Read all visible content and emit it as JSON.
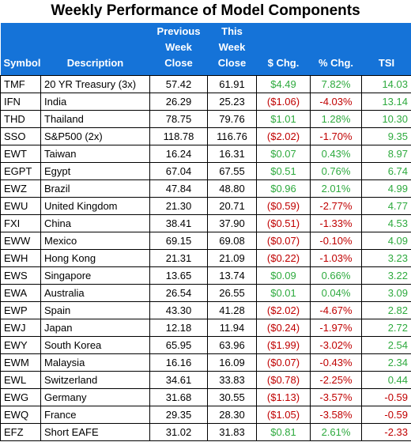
{
  "title": "Weekly Performance of Model Components",
  "headers": {
    "symbol": "Symbol",
    "description": "Description",
    "previous": [
      "Previous",
      "Week",
      "Close"
    ],
    "this_week": [
      "This",
      "Week",
      "Close"
    ],
    "dollar_change": "$ Chg.",
    "percent_change": "% Chg.",
    "tsi": "TSI"
  },
  "colors": {
    "header_bg": "#1573d8",
    "positive": "#2eaa3e",
    "negative": "#c00000"
  },
  "rows": [
    {
      "symbol": "TMF",
      "description": "20 YR Treasury (3x)",
      "previous": "57.42",
      "this_week": "61.91",
      "dollar_change": "$4.49",
      "percent_change": "7.82%",
      "tsi": "14.03",
      "dir": "pos"
    },
    {
      "symbol": "IFN",
      "description": "India",
      "previous": "26.29",
      "this_week": "25.23",
      "dollar_change": "($1.06)",
      "percent_change": "-4.03%",
      "tsi": "13.14",
      "dir": "neg"
    },
    {
      "symbol": "THD",
      "description": "Thailand",
      "previous": "78.75",
      "this_week": "79.76",
      "dollar_change": "$1.01",
      "percent_change": "1.28%",
      "tsi": "10.30",
      "dir": "pos"
    },
    {
      "symbol": "SSO",
      "description": "S&P500 (2x)",
      "previous": "118.78",
      "this_week": "116.76",
      "dollar_change": "($2.02)",
      "percent_change": "-1.70%",
      "tsi": "9.35",
      "dir": "neg"
    },
    {
      "symbol": "EWT",
      "description": "Taiwan",
      "previous": "16.24",
      "this_week": "16.31",
      "dollar_change": "$0.07",
      "percent_change": "0.43%",
      "tsi": "8.97",
      "dir": "pos"
    },
    {
      "symbol": "EGPT",
      "description": "Egypt",
      "previous": "67.04",
      "this_week": "67.55",
      "dollar_change": "$0.51",
      "percent_change": "0.76%",
      "tsi": "6.74",
      "dir": "pos"
    },
    {
      "symbol": "EWZ",
      "description": "Brazil",
      "previous": "47.84",
      "this_week": "48.80",
      "dollar_change": "$0.96",
      "percent_change": "2.01%",
      "tsi": "4.99",
      "dir": "pos"
    },
    {
      "symbol": "EWU",
      "description": "United Kingdom",
      "previous": "21.30",
      "this_week": "20.71",
      "dollar_change": "($0.59)",
      "percent_change": "-2.77%",
      "tsi": "4.77",
      "dir": "neg"
    },
    {
      "symbol": "FXI",
      "description": "China",
      "previous": "38.41",
      "this_week": "37.90",
      "dollar_change": "($0.51)",
      "percent_change": "-1.33%",
      "tsi": "4.53",
      "dir": "neg"
    },
    {
      "symbol": "EWW",
      "description": "Mexico",
      "previous": "69.15",
      "this_week": "69.08",
      "dollar_change": "($0.07)",
      "percent_change": "-0.10%",
      "tsi": "4.09",
      "dir": "neg"
    },
    {
      "symbol": "EWH",
      "description": "Hong Kong",
      "previous": "21.31",
      "this_week": "21.09",
      "dollar_change": "($0.22)",
      "percent_change": "-1.03%",
      "tsi": "3.23",
      "dir": "neg"
    },
    {
      "symbol": "EWS",
      "description": "Singapore",
      "previous": "13.65",
      "this_week": "13.74",
      "dollar_change": "$0.09",
      "percent_change": "0.66%",
      "tsi": "3.22",
      "dir": "pos"
    },
    {
      "symbol": "EWA",
      "description": "Australia",
      "previous": "26.54",
      "this_week": "26.55",
      "dollar_change": "$0.01",
      "percent_change": "0.04%",
      "tsi": "3.09",
      "dir": "pos"
    },
    {
      "symbol": "EWP",
      "description": "Spain",
      "previous": "43.30",
      "this_week": "41.28",
      "dollar_change": "($2.02)",
      "percent_change": "-4.67%",
      "tsi": "2.82",
      "dir": "neg"
    },
    {
      "symbol": "EWJ",
      "description": "Japan",
      "previous": "12.18",
      "this_week": "11.94",
      "dollar_change": "($0.24)",
      "percent_change": "-1.97%",
      "tsi": "2.72",
      "dir": "neg"
    },
    {
      "symbol": "EWY",
      "description": "South Korea",
      "previous": "65.95",
      "this_week": "63.96",
      "dollar_change": "($1.99)",
      "percent_change": "-3.02%",
      "tsi": "2.54",
      "dir": "neg"
    },
    {
      "symbol": "EWM",
      "description": "Malaysia",
      "previous": "16.16",
      "this_week": "16.09",
      "dollar_change": "($0.07)",
      "percent_change": "-0.43%",
      "tsi": "2.34",
      "dir": "neg"
    },
    {
      "symbol": "EWL",
      "description": "Switzerland",
      "previous": "34.61",
      "this_week": "33.83",
      "dollar_change": "($0.78)",
      "percent_change": "-2.25%",
      "tsi": "0.44",
      "dir": "neg"
    },
    {
      "symbol": "EWG",
      "description": "Germany",
      "previous": "31.68",
      "this_week": "30.55",
      "dollar_change": "($1.13)",
      "percent_change": "-3.57%",
      "tsi": "-0.59",
      "dir": "neg"
    },
    {
      "symbol": "EWQ",
      "description": "France",
      "previous": "29.35",
      "this_week": "28.30",
      "dollar_change": "($1.05)",
      "percent_change": "-3.58%",
      "tsi": "-0.59",
      "dir": "neg"
    },
    {
      "symbol": "EFZ",
      "description": "Short EAFE",
      "previous": "31.02",
      "this_week": "31.83",
      "dollar_change": "$0.81",
      "percent_change": "2.61%",
      "tsi": "-2.33",
      "dir": "pos"
    }
  ]
}
